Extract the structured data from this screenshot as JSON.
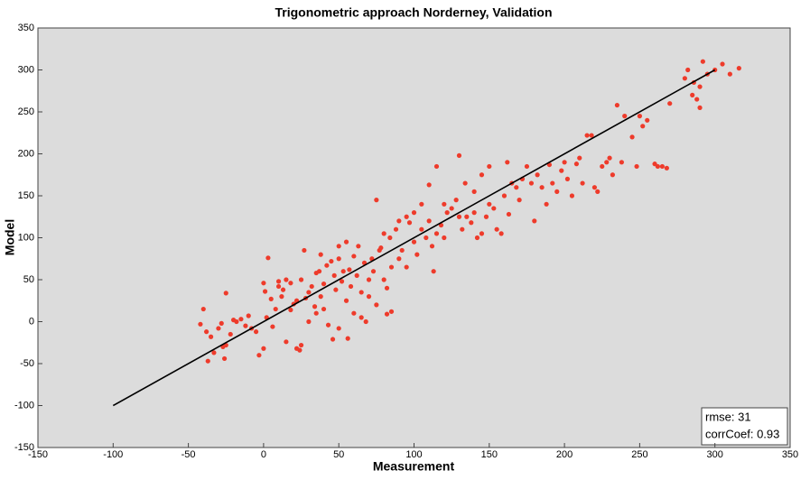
{
  "chart_data": {
    "type": "scatter",
    "title": "Trigonometric approach Norderney, Validation",
    "x_label": "Measurement",
    "y_label": "Model",
    "color": "#ee3b2b",
    "xlim": [
      -150,
      350
    ],
    "xticks": [
      -150,
      -100,
      -50,
      0,
      50,
      100,
      150,
      200,
      250,
      300,
      350
    ],
    "ylim": [
      -150,
      350
    ],
    "yticks": [
      -150,
      -100,
      -50,
      0,
      50,
      100,
      150,
      200,
      250,
      300,
      350
    ],
    "grid": false,
    "x": [
      -40,
      -42,
      -38,
      -35,
      -37,
      -33,
      -30,
      -28,
      -27,
      -25,
      -25,
      -26,
      -22,
      -20,
      -18,
      -15,
      -12,
      -10,
      -8,
      -5,
      -3,
      0,
      0,
      1,
      2,
      3,
      5,
      6,
      8,
      10,
      10,
      12,
      13,
      15,
      15,
      18,
      18,
      20,
      22,
      22,
      24,
      25,
      25,
      27,
      28,
      30,
      30,
      32,
      34,
      35,
      35,
      37,
      38,
      38,
      40,
      40,
      42,
      43,
      45,
      46,
      47,
      48,
      50,
      50,
      50,
      52,
      53,
      55,
      55,
      56,
      57,
      58,
      60,
      60,
      62,
      63,
      65,
      65,
      67,
      68,
      70,
      70,
      72,
      73,
      75,
      75,
      77,
      78,
      80,
      80,
      82,
      82,
      84,
      85,
      85,
      88,
      90,
      90,
      92,
      95,
      95,
      97,
      100,
      100,
      102,
      105,
      105,
      108,
      110,
      110,
      112,
      113,
      115,
      115,
      118,
      120,
      120,
      122,
      125,
      128,
      130,
      130,
      132,
      134,
      135,
      138,
      140,
      140,
      142,
      145,
      145,
      148,
      150,
      150,
      153,
      155,
      158,
      160,
      162,
      163,
      165,
      168,
      170,
      172,
      175,
      178,
      180,
      182,
      185,
      188,
      190,
      192,
      195,
      198,
      200,
      202,
      205,
      208,
      210,
      212,
      215,
      218,
      220,
      222,
      225,
      228,
      230,
      232,
      235,
      238,
      240,
      245,
      248,
      250,
      252,
      255,
      260,
      262,
      265,
      268,
      270,
      280,
      282,
      285,
      286,
      288,
      290,
      290,
      292,
      295,
      300,
      305,
      310,
      316
    ],
    "y": [
      15,
      -3,
      -12,
      -18,
      -47,
      -37,
      -8,
      -2,
      -30,
      -28,
      34,
      -44,
      -15,
      2,
      0,
      3,
      -5,
      7,
      -8,
      -12,
      -40,
      -32,
      46,
      36,
      5,
      76,
      27,
      -6,
      15,
      42,
      48,
      30,
      38,
      50,
      -24,
      46,
      14,
      21,
      25,
      -32,
      -34,
      -28,
      50,
      85,
      28,
      0,
      35,
      42,
      18,
      10,
      58,
      60,
      80,
      30,
      45,
      15,
      67,
      -4,
      72,
      -21,
      55,
      38,
      75,
      90,
      -8,
      48,
      60,
      95,
      25,
      -20,
      62,
      42,
      78,
      10,
      55,
      90,
      35,
      5,
      70,
      0,
      50,
      30,
      75,
      60,
      145,
      20,
      85,
      88,
      105,
      50,
      40,
      9,
      100,
      12,
      65,
      110,
      120,
      75,
      85,
      125,
      65,
      118,
      130,
      95,
      80,
      110,
      140,
      100,
      163,
      120,
      90,
      60,
      185,
      105,
      115,
      100,
      140,
      130,
      135,
      145,
      198,
      125,
      110,
      165,
      125,
      118,
      130,
      155,
      100,
      105,
      175,
      125,
      185,
      140,
      135,
      110,
      105,
      150,
      190,
      128,
      165,
      160,
      145,
      170,
      185,
      165,
      120,
      175,
      160,
      140,
      187,
      165,
      155,
      180,
      190,
      170,
      150,
      188,
      195,
      165,
      222,
      222,
      160,
      155,
      185,
      190,
      195,
      175,
      258,
      190,
      245,
      220,
      185,
      245,
      233,
      240,
      188,
      185,
      185,
      183,
      260,
      290,
      300,
      270,
      285,
      265,
      280,
      255,
      310,
      295,
      300,
      307,
      295,
      302
    ],
    "reference_line": {
      "x": [
        -100,
        300
      ],
      "y": [
        -100,
        300
      ]
    },
    "annotations": [
      "rmse: 31",
      "corrCoef: 0.93"
    ]
  }
}
